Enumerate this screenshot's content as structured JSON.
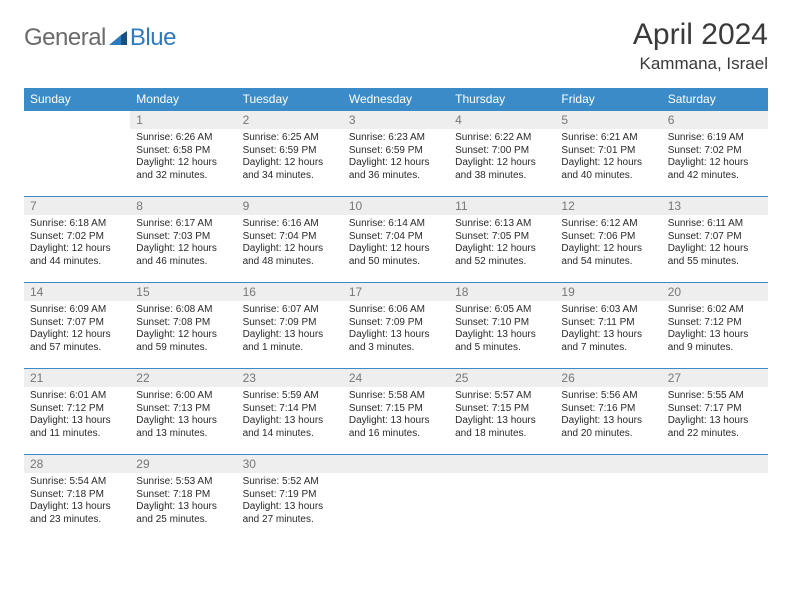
{
  "brand": {
    "part1": "General",
    "part2": "Blue"
  },
  "colors": {
    "header_bg": "#3b8bc9",
    "header_fg": "#ffffff",
    "daynum_bg": "#eeeeee",
    "daynum_fg": "#777777",
    "row_border": "#3b8bc9",
    "brand_gray": "#6a6a6a",
    "brand_blue": "#2f7bbf"
  },
  "title": "April 2024",
  "location": "Kammana, Israel",
  "weekdays": [
    "Sunday",
    "Monday",
    "Tuesday",
    "Wednesday",
    "Thursday",
    "Friday",
    "Saturday"
  ],
  "start_offset": 1,
  "days_in_month": 30,
  "days": {
    "1": {
      "sunrise": "6:26 AM",
      "sunset": "6:58 PM",
      "daylight": "12 hours and 32 minutes."
    },
    "2": {
      "sunrise": "6:25 AM",
      "sunset": "6:59 PM",
      "daylight": "12 hours and 34 minutes."
    },
    "3": {
      "sunrise": "6:23 AM",
      "sunset": "6:59 PM",
      "daylight": "12 hours and 36 minutes."
    },
    "4": {
      "sunrise": "6:22 AM",
      "sunset": "7:00 PM",
      "daylight": "12 hours and 38 minutes."
    },
    "5": {
      "sunrise": "6:21 AM",
      "sunset": "7:01 PM",
      "daylight": "12 hours and 40 minutes."
    },
    "6": {
      "sunrise": "6:19 AM",
      "sunset": "7:02 PM",
      "daylight": "12 hours and 42 minutes."
    },
    "7": {
      "sunrise": "6:18 AM",
      "sunset": "7:02 PM",
      "daylight": "12 hours and 44 minutes."
    },
    "8": {
      "sunrise": "6:17 AM",
      "sunset": "7:03 PM",
      "daylight": "12 hours and 46 minutes."
    },
    "9": {
      "sunrise": "6:16 AM",
      "sunset": "7:04 PM",
      "daylight": "12 hours and 48 minutes."
    },
    "10": {
      "sunrise": "6:14 AM",
      "sunset": "7:04 PM",
      "daylight": "12 hours and 50 minutes."
    },
    "11": {
      "sunrise": "6:13 AM",
      "sunset": "7:05 PM",
      "daylight": "12 hours and 52 minutes."
    },
    "12": {
      "sunrise": "6:12 AM",
      "sunset": "7:06 PM",
      "daylight": "12 hours and 54 minutes."
    },
    "13": {
      "sunrise": "6:11 AM",
      "sunset": "7:07 PM",
      "daylight": "12 hours and 55 minutes."
    },
    "14": {
      "sunrise": "6:09 AM",
      "sunset": "7:07 PM",
      "daylight": "12 hours and 57 minutes."
    },
    "15": {
      "sunrise": "6:08 AM",
      "sunset": "7:08 PM",
      "daylight": "12 hours and 59 minutes."
    },
    "16": {
      "sunrise": "6:07 AM",
      "sunset": "7:09 PM",
      "daylight": "13 hours and 1 minute."
    },
    "17": {
      "sunrise": "6:06 AM",
      "sunset": "7:09 PM",
      "daylight": "13 hours and 3 minutes."
    },
    "18": {
      "sunrise": "6:05 AM",
      "sunset": "7:10 PM",
      "daylight": "13 hours and 5 minutes."
    },
    "19": {
      "sunrise": "6:03 AM",
      "sunset": "7:11 PM",
      "daylight": "13 hours and 7 minutes."
    },
    "20": {
      "sunrise": "6:02 AM",
      "sunset": "7:12 PM",
      "daylight": "13 hours and 9 minutes."
    },
    "21": {
      "sunrise": "6:01 AM",
      "sunset": "7:12 PM",
      "daylight": "13 hours and 11 minutes."
    },
    "22": {
      "sunrise": "6:00 AM",
      "sunset": "7:13 PM",
      "daylight": "13 hours and 13 minutes."
    },
    "23": {
      "sunrise": "5:59 AM",
      "sunset": "7:14 PM",
      "daylight": "13 hours and 14 minutes."
    },
    "24": {
      "sunrise": "5:58 AM",
      "sunset": "7:15 PM",
      "daylight": "13 hours and 16 minutes."
    },
    "25": {
      "sunrise": "5:57 AM",
      "sunset": "7:15 PM",
      "daylight": "13 hours and 18 minutes."
    },
    "26": {
      "sunrise": "5:56 AM",
      "sunset": "7:16 PM",
      "daylight": "13 hours and 20 minutes."
    },
    "27": {
      "sunrise": "5:55 AM",
      "sunset": "7:17 PM",
      "daylight": "13 hours and 22 minutes."
    },
    "28": {
      "sunrise": "5:54 AM",
      "sunset": "7:18 PM",
      "daylight": "13 hours and 23 minutes."
    },
    "29": {
      "sunrise": "5:53 AM",
      "sunset": "7:18 PM",
      "daylight": "13 hours and 25 minutes."
    },
    "30": {
      "sunrise": "5:52 AM",
      "sunset": "7:19 PM",
      "daylight": "13 hours and 27 minutes."
    }
  },
  "labels": {
    "sunrise": "Sunrise:",
    "sunset": "Sunset:",
    "daylight": "Daylight:"
  }
}
